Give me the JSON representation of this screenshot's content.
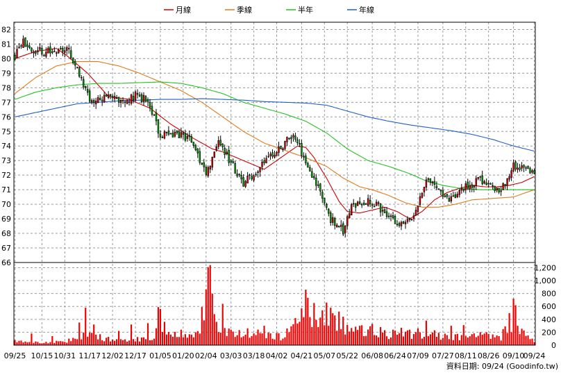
{
  "chart_data": {
    "type": "candlestick",
    "title": "",
    "legend": [
      {
        "name": "月線",
        "color": "#cc0000"
      },
      {
        "name": "季線",
        "color": "#e07b1a"
      },
      {
        "name": "半年",
        "color": "#22c322"
      },
      {
        "name": "年線",
        "color": "#1f5fcc"
      }
    ],
    "legend_position": "top-center",
    "price_axis": {
      "ylim": [
        66,
        82.5
      ],
      "ticks": [
        66,
        67,
        68,
        69,
        70,
        71,
        72,
        73,
        74,
        75,
        76,
        77,
        78,
        79,
        80,
        81,
        82
      ],
      "side": "left"
    },
    "volume_axis": {
      "ylim": [
        0,
        1280
      ],
      "ticks": [
        0,
        200,
        400,
        600,
        800,
        "1,000",
        "1,200"
      ],
      "tick_values": [
        0,
        200,
        400,
        600,
        800,
        1000,
        1200
      ],
      "side": "right"
    },
    "x_tick_labels": [
      "09/25",
      "10/15",
      "10/31",
      "11/17",
      "12/02",
      "12/17",
      "01/05",
      "01/20",
      "02/04",
      "03/03",
      "03/18",
      "04/02",
      "04/21",
      "05/07",
      "05/22",
      "06/08",
      "06/24",
      "07/09",
      "07/27",
      "08/11",
      "08/26",
      "09/10",
      "09/24"
    ],
    "x_tick_index": [
      0,
      13,
      24,
      36,
      47,
      58,
      70,
      81,
      92,
      104,
      115,
      126,
      138,
      149,
      160,
      172,
      183,
      194,
      206,
      217,
      228,
      240,
      250
    ],
    "n_days": 251,
    "price_anchors": [
      [
        0,
        80.2
      ],
      [
        4,
        81.2
      ],
      [
        8,
        80.7
      ],
      [
        14,
        80.4
      ],
      [
        20,
        80.6
      ],
      [
        26,
        80.5
      ],
      [
        30,
        79.2
      ],
      [
        36,
        77.2
      ],
      [
        44,
        77.4
      ],
      [
        52,
        77.0
      ],
      [
        58,
        77.5
      ],
      [
        64,
        77.1
      ],
      [
        70,
        74.7
      ],
      [
        78,
        74.9
      ],
      [
        86,
        74.2
      ],
      [
        92,
        72.0
      ],
      [
        98,
        74.5
      ],
      [
        104,
        72.8
      ],
      [
        110,
        71.5
      ],
      [
        116,
        72.2
      ],
      [
        122,
        73.4
      ],
      [
        128,
        73.8
      ],
      [
        134,
        74.9
      ],
      [
        140,
        72.9
      ],
      [
        146,
        71.2
      ],
      [
        152,
        69.0
      ],
      [
        158,
        68.2
      ],
      [
        162,
        69.8
      ],
      [
        168,
        70.2
      ],
      [
        174,
        70.0
      ],
      [
        180,
        69.1
      ],
      [
        186,
        68.7
      ],
      [
        192,
        69.3
      ],
      [
        198,
        71.6
      ],
      [
        204,
        71.0
      ],
      [
        210,
        70.3
      ],
      [
        214,
        71.1
      ],
      [
        218,
        71.2
      ],
      [
        224,
        71.7
      ],
      [
        230,
        71.0
      ],
      [
        236,
        71.2
      ],
      [
        240,
        72.6
      ],
      [
        246,
        72.3
      ],
      [
        250,
        72.2
      ]
    ],
    "volume_anchors": [
      [
        0,
        60
      ],
      [
        12,
        50
      ],
      [
        24,
        45
      ],
      [
        30,
        140
      ],
      [
        36,
        160
      ],
      [
        48,
        70
      ],
      [
        58,
        100
      ],
      [
        66,
        80
      ],
      [
        70,
        300
      ],
      [
        78,
        200
      ],
      [
        88,
        150
      ],
      [
        94,
        1150
      ],
      [
        98,
        250
      ],
      [
        104,
        200
      ],
      [
        112,
        150
      ],
      [
        120,
        180
      ],
      [
        128,
        120
      ],
      [
        136,
        300
      ],
      [
        140,
        750
      ],
      [
        146,
        400
      ],
      [
        152,
        350
      ],
      [
        158,
        300
      ],
      [
        164,
        220
      ],
      [
        174,
        200
      ],
      [
        184,
        150
      ],
      [
        194,
        170
      ],
      [
        204,
        140
      ],
      [
        214,
        120
      ],
      [
        224,
        150
      ],
      [
        234,
        120
      ],
      [
        240,
        520
      ],
      [
        246,
        100
      ],
      [
        250,
        80
      ]
    ],
    "volume_spikes": [
      [
        8,
        180
      ],
      [
        18,
        140
      ],
      [
        31,
        350
      ],
      [
        34,
        580
      ],
      [
        38,
        320
      ],
      [
        50,
        220
      ],
      [
        56,
        320
      ],
      [
        64,
        340
      ],
      [
        69,
        590
      ],
      [
        70,
        560
      ],
      [
        80,
        240
      ],
      [
        87,
        200
      ],
      [
        94,
        1240
      ],
      [
        96,
        480
      ],
      [
        100,
        640
      ],
      [
        104,
        240
      ],
      [
        112,
        260
      ],
      [
        120,
        300
      ],
      [
        126,
        190
      ],
      [
        135,
        420
      ],
      [
        138,
        570
      ],
      [
        140,
        860
      ],
      [
        143,
        280
      ],
      [
        148,
        540
      ],
      [
        150,
        660
      ],
      [
        152,
        580
      ],
      [
        154,
        460
      ],
      [
        156,
        520
      ],
      [
        158,
        440
      ],
      [
        166,
        300
      ],
      [
        172,
        330
      ],
      [
        176,
        280
      ],
      [
        182,
        240
      ],
      [
        186,
        270
      ],
      [
        190,
        240
      ],
      [
        194,
        260
      ],
      [
        198,
        380
      ],
      [
        202,
        230
      ],
      [
        210,
        300
      ],
      [
        216,
        310
      ],
      [
        220,
        170
      ],
      [
        226,
        180
      ],
      [
        232,
        150
      ],
      [
        239,
        200
      ],
      [
        240,
        720
      ],
      [
        242,
        300
      ],
      [
        247,
        150
      ]
    ],
    "ma_month": [
      [
        0,
        80.0
      ],
      [
        10,
        80.5
      ],
      [
        20,
        80.7
      ],
      [
        25,
        80.2
      ],
      [
        35,
        79.0
      ],
      [
        45,
        77.4
      ],
      [
        55,
        77.2
      ],
      [
        65,
        76.6
      ],
      [
        75,
        75.5
      ],
      [
        85,
        74.6
      ],
      [
        95,
        73.8
      ],
      [
        100,
        73.6
      ],
      [
        110,
        73.0
      ],
      [
        120,
        72.4
      ],
      [
        130,
        73.4
      ],
      [
        136,
        74.0
      ],
      [
        140,
        73.9
      ],
      [
        144,
        73.2
      ],
      [
        150,
        71.8
      ],
      [
        156,
        70.2
      ],
      [
        160,
        69.5
      ],
      [
        166,
        69.4
      ],
      [
        172,
        69.6
      ],
      [
        178,
        69.8
      ],
      [
        184,
        69.5
      ],
      [
        190,
        69.0
      ],
      [
        196,
        69.5
      ],
      [
        202,
        70.3
      ],
      [
        208,
        70.8
      ],
      [
        214,
        71.1
      ],
      [
        220,
        71.3
      ],
      [
        226,
        71.2
      ],
      [
        232,
        71.2
      ],
      [
        238,
        71.3
      ],
      [
        244,
        71.5
      ],
      [
        250,
        71.9
      ]
    ],
    "ma_quarter": [
      [
        0,
        77.6
      ],
      [
        10,
        78.7
      ],
      [
        20,
        79.5
      ],
      [
        30,
        79.8
      ],
      [
        40,
        79.8
      ],
      [
        50,
        79.5
      ],
      [
        60,
        79.0
      ],
      [
        70,
        78.4
      ],
      [
        80,
        77.8
      ],
      [
        90,
        77.0
      ],
      [
        100,
        76.0
      ],
      [
        110,
        75.0
      ],
      [
        120,
        74.2
      ],
      [
        130,
        73.7
      ],
      [
        140,
        73.2
      ],
      [
        150,
        72.6
      ],
      [
        158,
        71.8
      ],
      [
        166,
        71.2
      ],
      [
        172,
        71.0
      ],
      [
        180,
        70.6
      ],
      [
        188,
        70.1
      ],
      [
        196,
        69.8
      ],
      [
        204,
        69.8
      ],
      [
        212,
        70.0
      ],
      [
        220,
        70.3
      ],
      [
        230,
        70.4
      ],
      [
        240,
        70.5
      ],
      [
        250,
        71.0
      ]
    ],
    "ma_half": [
      [
        0,
        77.2
      ],
      [
        10,
        77.7
      ],
      [
        20,
        78.0
      ],
      [
        30,
        78.2
      ],
      [
        40,
        78.3
      ],
      [
        50,
        78.3
      ],
      [
        60,
        78.35
      ],
      [
        70,
        78.4
      ],
      [
        80,
        78.3
      ],
      [
        90,
        78.0
      ],
      [
        100,
        77.6
      ],
      [
        110,
        77.0
      ],
      [
        120,
        76.6
      ],
      [
        130,
        76.2
      ],
      [
        140,
        75.7
      ],
      [
        150,
        74.9
      ],
      [
        160,
        73.8
      ],
      [
        170,
        73.0
      ],
      [
        180,
        72.6
      ],
      [
        190,
        72.1
      ],
      [
        198,
        71.6
      ],
      [
        206,
        71.3
      ],
      [
        214,
        71.1
      ],
      [
        224,
        71.0
      ],
      [
        234,
        71.0
      ],
      [
        244,
        71.0
      ],
      [
        250,
        71.0
      ]
    ],
    "ma_year": [
      [
        0,
        76.0
      ],
      [
        10,
        76.3
      ],
      [
        20,
        76.6
      ],
      [
        30,
        76.9
      ],
      [
        40,
        77.0
      ],
      [
        50,
        77.1
      ],
      [
        60,
        77.15
      ],
      [
        70,
        77.2
      ],
      [
        80,
        77.2
      ],
      [
        90,
        77.25
      ],
      [
        100,
        77.2
      ],
      [
        110,
        77.15
      ],
      [
        120,
        77.05
      ],
      [
        130,
        77.0
      ],
      [
        140,
        76.95
      ],
      [
        150,
        76.8
      ],
      [
        160,
        76.4
      ],
      [
        170,
        76.0
      ],
      [
        180,
        75.7
      ],
      [
        190,
        75.45
      ],
      [
        200,
        75.25
      ],
      [
        210,
        75.05
      ],
      [
        220,
        74.8
      ],
      [
        230,
        74.45
      ],
      [
        240,
        74.0
      ],
      [
        250,
        73.65
      ]
    ],
    "footer": "資料日期: 09/24 (Goodinfo.tw)"
  }
}
